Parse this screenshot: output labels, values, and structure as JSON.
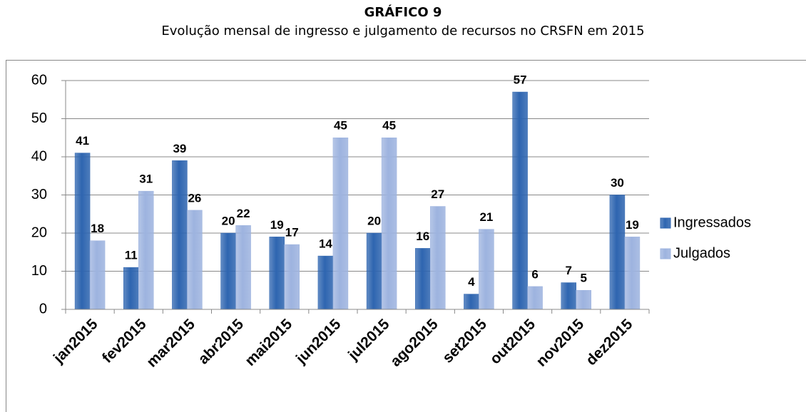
{
  "chart_data": {
    "type": "bar",
    "title": "GRÁFICO 9",
    "subtitle": "Evolução mensal de ingresso e julgamento de recursos no CRSFN em 2015",
    "categories": [
      "jan2015",
      "fev2015",
      "mar2015",
      "abr2015",
      "mai2015",
      "jun2015",
      "jul2015",
      "ago2015",
      "set2015",
      "out2015",
      "nov2015",
      "dez2015"
    ],
    "series": [
      {
        "name": "Ingressados",
        "color": "#2e65b0",
        "values": [
          41,
          11,
          39,
          20,
          19,
          14,
          20,
          16,
          4,
          57,
          7,
          30
        ]
      },
      {
        "name": "Julgados",
        "color": "#9db3df",
        "values": [
          18,
          31,
          26,
          22,
          17,
          45,
          45,
          27,
          21,
          6,
          5,
          19
        ]
      }
    ],
    "ylim": [
      0,
      60
    ],
    "yticks": [
      0,
      10,
      20,
      30,
      40,
      50,
      60
    ],
    "grid": true,
    "legend": "right"
  }
}
